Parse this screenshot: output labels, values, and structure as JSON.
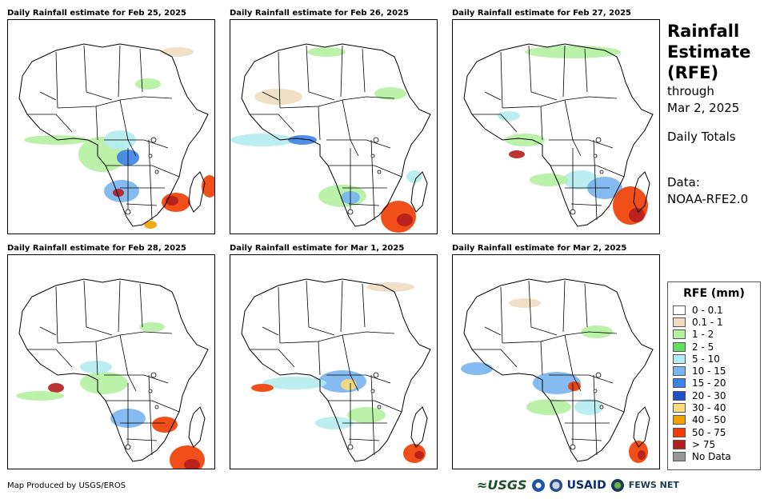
{
  "panels": [
    {
      "title": "Daily Rainfall estimate for Feb 25, 2025"
    },
    {
      "title": "Daily Rainfall estimate for Feb 26, 2025"
    },
    {
      "title": "Daily Rainfall estimate for Feb 27, 2025"
    },
    {
      "title": "Daily Rainfall estimate for Feb 28, 2025"
    },
    {
      "title": "Daily Rainfall estimate for Mar 1, 2025"
    },
    {
      "title": "Daily Rainfall estimate for Mar 2, 2025"
    }
  ],
  "side": {
    "title_1": "Rainfall",
    "title_2": "Estimate",
    "title_3": "(RFE)",
    "through": "through",
    "date": "Mar 2, 2025",
    "period": "Daily Totals",
    "data_label": "Data:",
    "data_source": "NOAA-RFE2.0"
  },
  "legend": {
    "title": "RFE (mm)",
    "items": [
      {
        "label": "0 - 0.1",
        "color": "#ffffff"
      },
      {
        "label": "0.1 - 1",
        "color": "#f0dcc0"
      },
      {
        "label": "1 - 2",
        "color": "#b4f0a0"
      },
      {
        "label": "2 - 5",
        "color": "#5fe05f"
      },
      {
        "label": "5 - 10",
        "color": "#b4ecf0"
      },
      {
        "label": "10 - 15",
        "color": "#78b4f0"
      },
      {
        "label": "15 - 20",
        "color": "#3c82e6"
      },
      {
        "label": "20 - 30",
        "color": "#1e50c8"
      },
      {
        "label": "30 - 40",
        "color": "#fadc78"
      },
      {
        "label": "40 - 50",
        "color": "#f0a000"
      },
      {
        "label": "50 - 75",
        "color": "#f03c00"
      },
      {
        "label": "> 75",
        "color": "#b41e1e"
      },
      {
        "label": "No Data",
        "color": "#969696"
      }
    ]
  },
  "footer": {
    "credit": "Map Produced by USGS/EROS"
  },
  "logos": {
    "usgs": "≈USGS",
    "usaid": "USAID",
    "fews": "FEWS NET"
  }
}
